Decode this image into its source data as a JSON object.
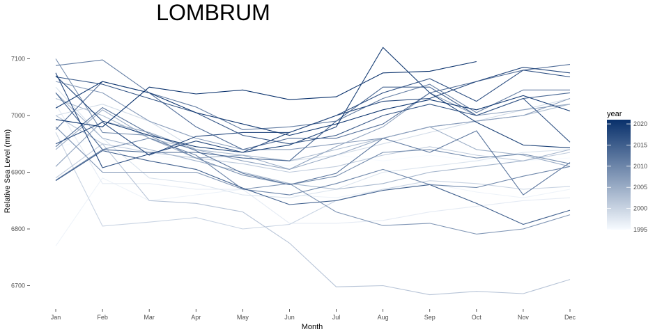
{
  "chart_data": {
    "type": "line",
    "title": "LOMBRUM",
    "xlabel": "Month",
    "ylabel": "Relative Sea Level (mm)",
    "categories": [
      "Jan",
      "Feb",
      "Mar",
      "Apr",
      "May",
      "Jun",
      "Jul",
      "Aug",
      "Sep",
      "Oct",
      "Nov",
      "Dec"
    ],
    "ylim": [
      6670,
      7130
    ],
    "yticks": [
      6700,
      6800,
      6900,
      7000,
      7100
    ],
    "grid": false,
    "legend": {
      "title": "year",
      "position": "right",
      "range": [
        1995,
        2021
      ],
      "ticks": [
        1995,
        2000,
        2005,
        2010,
        2015,
        2020
      ],
      "color_low": "#f7fbff",
      "color_high": "#08306b"
    },
    "series": [
      {
        "year": 1995,
        "values": [
          6945,
          6960,
          6930,
          6920,
          6915,
          6912,
          6930,
          6920,
          6930,
          6920,
          6920,
          6925
        ]
      },
      {
        "year": 1996,
        "values": [
          6770,
          6890,
          6850,
          6860,
          6870,
          6860,
          6855,
          6870,
          6880,
          6865,
          6855,
          6870
        ]
      },
      {
        "year": 1997,
        "values": [
          7020,
          6880,
          6880,
          6870,
          6870,
          6810,
          6810,
          6815,
          6830,
          6840,
          6850,
          6855
        ]
      },
      {
        "year": 1998,
        "values": [
          7050,
          6960,
          6890,
          6880,
          6860,
          6855,
          6870,
          6900,
          6910,
          6920,
          6935,
          6940
        ]
      },
      {
        "year": 1999,
        "values": [
          7000,
          7020,
          6990,
          6940,
          6930,
          6920,
          6930,
          6950,
          6970,
          6990,
          7010,
          7030
        ]
      },
      {
        "year": 2000,
        "values": [
          6970,
          6805,
          6812,
          6820,
          6800,
          6808,
          6850,
          6870,
          6885,
          6880,
          6870,
          6875
        ]
      },
      {
        "year": 2001,
        "values": [
          6890,
          6950,
          6935,
          6925,
          6915,
          6900,
          6910,
          6930,
          6945,
          6930,
          6920,
          6935
        ]
      },
      {
        "year": 2002,
        "values": [
          7000,
          6950,
          6850,
          6845,
          6830,
          6775,
          6698,
          6700,
          6684,
          6690,
          6686,
          6711
        ]
      },
      {
        "year": 2003,
        "values": [
          7030,
          7000,
          6960,
          6940,
          6930,
          6920,
          6940,
          6960,
          6980,
          6990,
          7000,
          7020
        ]
      },
      {
        "year": 2004,
        "values": [
          7040,
          6960,
          6940,
          6920,
          6900,
          6880,
          6870,
          6880,
          6900,
          6910,
          6920,
          6940
        ]
      },
      {
        "year": 2005,
        "values": [
          6940,
          7010,
          6960,
          6925,
          6930,
          6905,
          6930,
          6960,
          6980,
          6940,
          6930,
          6910
        ]
      },
      {
        "year": 2006,
        "values": [
          6910,
          6990,
          6970,
          6940,
          6920,
          6905,
          6945,
          6980,
          7040,
          7000,
          7010,
          7020
        ]
      },
      {
        "year": 2007,
        "values": [
          7060,
          7040,
          6990,
          6960,
          6940,
          6940,
          6950,
          6960,
          6980,
          6990,
          7000,
          7030
        ]
      },
      {
        "year": 2008,
        "values": [
          6980,
          6900,
          6900,
          6900,
          6870,
          6880,
          6830,
          6806,
          6810,
          6791,
          6800,
          6825
        ]
      },
      {
        "year": 2009,
        "values": [
          7100,
          6970,
          6965,
          6925,
          6895,
          6878,
          6893,
          6935,
          6940,
          6925,
          6932,
          6915
        ]
      },
      {
        "year": 2010,
        "values": [
          6886,
          6940,
          6960,
          6930,
          6870,
          6860,
          6880,
          6905,
          6878,
          6873,
          6893,
          6910
        ]
      },
      {
        "year": 2011,
        "values": [
          7088,
          7098,
          7040,
          7015,
          6975,
          6980,
          6990,
          7030,
          7055,
          7005,
          7045,
          7045
        ]
      },
      {
        "year": 2012,
        "values": [
          6945,
          7014,
          6968,
          6938,
          6898,
          6878,
          6898,
          6960,
          6935,
          6973,
          6860,
          6917
        ]
      },
      {
        "year": 2013,
        "values": [
          6975,
          7060,
          7040,
          6980,
          6940,
          6960,
          6960,
          6985,
          7040,
          7060,
          7080,
          7090
        ]
      },
      {
        "year": 2014,
        "values": [
          7040,
          6940,
          6935,
          6935,
          6925,
          6920,
          6990,
          7050,
          7050,
          7000,
          7030,
          7040
        ]
      },
      {
        "year": 2015,
        "values": [
          6885,
          6938,
          6920,
          6905,
          6872,
          6843,
          6850,
          6868,
          6878,
          6845,
          6808,
          6833
        ]
      },
      {
        "year": 2016,
        "values": [
          7068,
          7055,
          7030,
          7005,
          6965,
          6950,
          6965,
          7000,
          7020,
          7000,
          7030,
          6953
        ]
      },
      {
        "year": 2017,
        "values": [
          6950,
          6988,
          6930,
          6963,
          6970,
          6970,
          7000,
          7040,
          7065,
          7025,
          7080,
          7068
        ]
      },
      {
        "year": 2018,
        "values": [
          7075,
          6908,
          6932,
          6955,
          6935,
          6970,
          7000,
          7025,
          7030,
          7060,
          7085,
          7075
        ]
      },
      {
        "year": 2019,
        "values": [
          7070,
          6990,
          6965,
          6945,
          6935,
          6948,
          6980,
          7120,
          7040,
          6988,
          6948,
          6943
        ]
      },
      {
        "year": 2020,
        "values": [
          7013,
          7060,
          7040,
          7005,
          6985,
          6965,
          6985,
          7010,
          7028,
          7010,
          7035,
          7008
        ]
      },
      {
        "year": 2021,
        "values": [
          6993,
          6980,
          7050,
          7038,
          7045,
          7028,
          7033,
          7075,
          7078,
          7095,
          null,
          null
        ]
      }
    ]
  }
}
